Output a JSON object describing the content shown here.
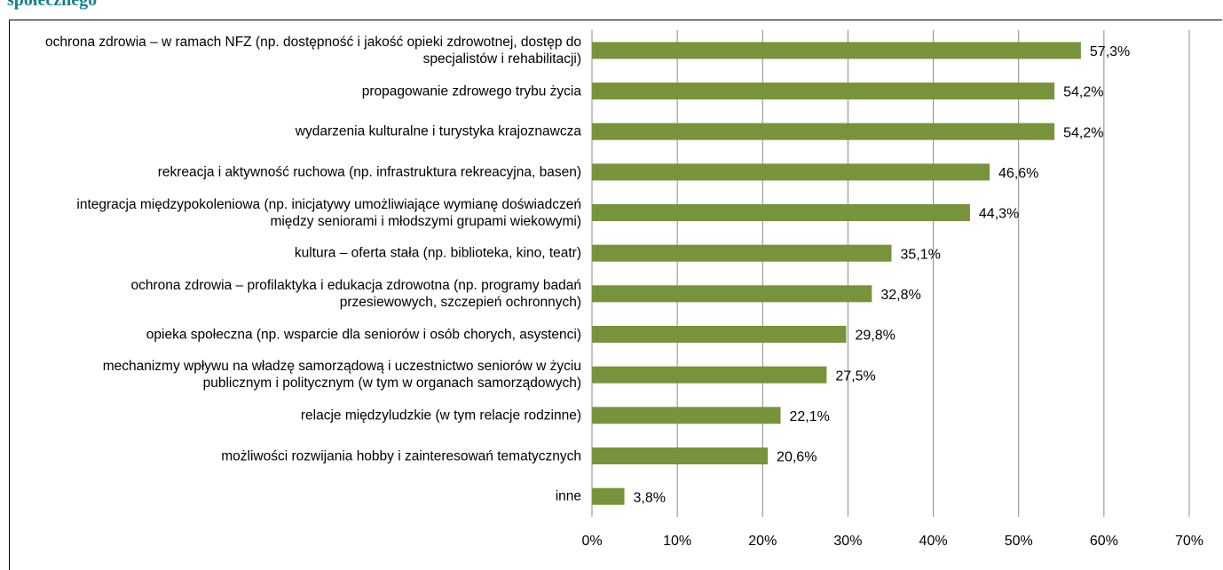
{
  "chart_data": {
    "type": "bar",
    "orientation": "horizontal",
    "title": "społecznego",
    "categories": [
      "ochrona zdrowia – w ramach NFZ (np. dostępność i jakość opieki zdrowotnej, dostęp do specjalistów i rehabilitacji)",
      "propagowanie zdrowego trybu życia",
      "wydarzenia kulturalne i turystyka krajoznawcza",
      "rekreacja i aktywność ruchowa (np. infrastruktura rekreacyjna, basen)",
      "integracja międzypokoleniowa (np. inicjatywy umożliwiające wymianę doświadczeń między seniorami i młodszymi grupami wiekowymi)",
      "kultura – oferta stała (np. biblioteka, kino, teatr)",
      "ochrona zdrowia – profilaktyka i edukacja zdrowotna (np. programy badań przesiewowych, szczepień ochronnych)",
      "opieka społeczna (np. wsparcie dla seniorów i osób chorych, asystenci)",
      "mechanizmy wpływu na władzę samorządową i uczestnictwo seniorów w życiu publicznym i politycznym (w tym w organach samorządowych)",
      "relacje międzyludzkie (w tym relacje rodzinne)",
      "możliwości rozwijania hobby i zainteresowań tematycznych",
      "inne"
    ],
    "values": [
      57.3,
      54.2,
      54.2,
      46.6,
      44.3,
      35.1,
      32.8,
      29.8,
      27.5,
      22.1,
      20.6,
      3.8
    ],
    "value_labels": [
      "57,3%",
      "54,2%",
      "54,2%",
      "46,6%",
      "44,3%",
      "35,1%",
      "32,8%",
      "29,8%",
      "27,5%",
      "22,1%",
      "20,6%",
      "3,8%"
    ],
    "color": "#77933c",
    "xlim": [
      0,
      70
    ],
    "xticks": [
      {
        "value": 0,
        "label": "0%"
      },
      {
        "value": 10,
        "label": "10%"
      },
      {
        "value": 20,
        "label": "20%"
      },
      {
        "value": 30,
        "label": "30%"
      },
      {
        "value": 40,
        "label": "40%"
      },
      {
        "value": 50,
        "label": "50%"
      },
      {
        "value": 60,
        "label": "60%"
      },
      {
        "value": 70,
        "label": "70%"
      }
    ],
    "grid": true
  }
}
